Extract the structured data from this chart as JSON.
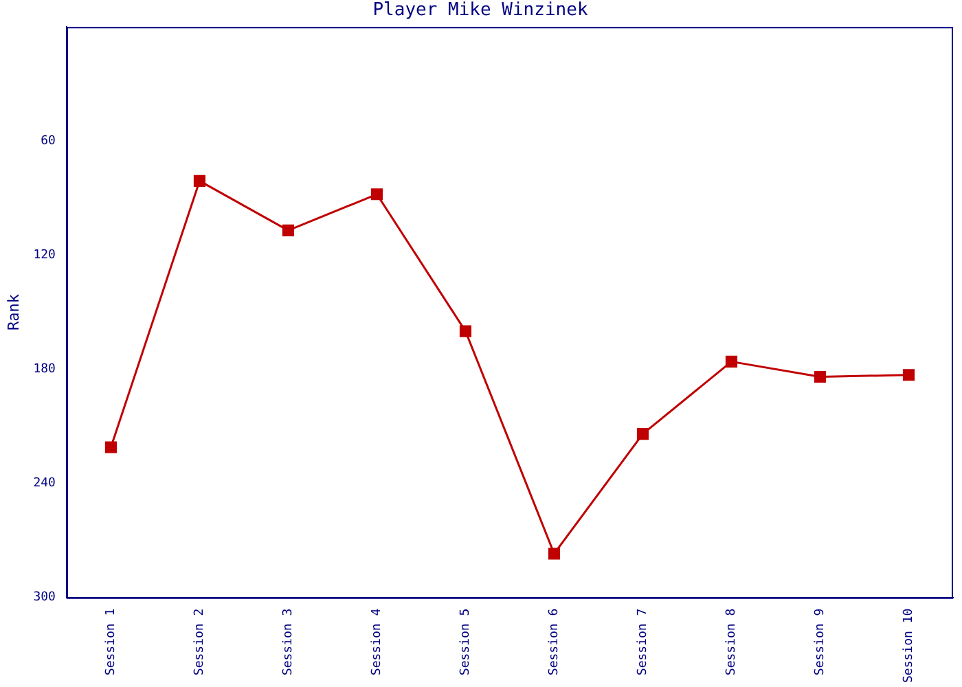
{
  "chart_data": {
    "type": "line",
    "title": "Player Mike Winzinek",
    "ylabel": "Rank",
    "categories": [
      "Session 1",
      "Session 2",
      "Session 3",
      "Session 4",
      "Session 5",
      "Session 6",
      "Session 7",
      "Session 8",
      "Session 9",
      "Session 10"
    ],
    "series": [
      {
        "color": "#c00000",
        "values": [
          221,
          81,
          107,
          88,
          160,
          277,
          214,
          176,
          184,
          183
        ]
      }
    ],
    "ylim": [
      300,
      0
    ],
    "yticks": [
      60,
      120,
      180,
      240,
      300
    ],
    "grid": false,
    "legend": false,
    "marker": "square",
    "line_style": "solid"
  }
}
